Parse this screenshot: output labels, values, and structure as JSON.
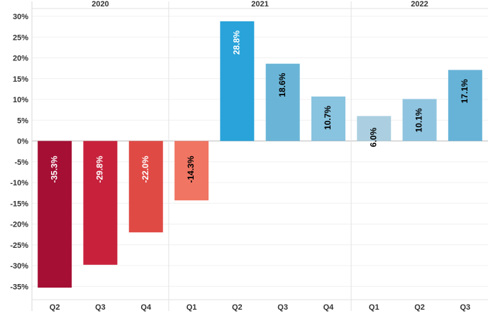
{
  "chart_data": {
    "type": "bar",
    "title": "",
    "xlabel": "",
    "ylabel": "",
    "ylim": [
      -36,
      31
    ],
    "yticks": [
      30,
      25,
      20,
      15,
      10,
      5,
      0,
      -5,
      -10,
      -15,
      -20,
      -25,
      -30,
      -35
    ],
    "ytick_labels": [
      "30%",
      "25%",
      "20%",
      "15%",
      "10%",
      "5%",
      "0%",
      "-5%",
      "-10%",
      "-15%",
      "-20%",
      "-25%",
      "-30%",
      "-35%"
    ],
    "years": [
      {
        "label": "2020",
        "quarters": 3
      },
      {
        "label": "2021",
        "quarters": 4
      },
      {
        "label": "2022",
        "quarters": 3
      }
    ],
    "categories": [
      "Q2",
      "Q3",
      "Q4",
      "Q1",
      "Q2",
      "Q3",
      "Q4",
      "Q1",
      "Q2",
      "Q3"
    ],
    "values": [
      -35.3,
      -29.8,
      -22.0,
      -14.3,
      28.8,
      18.6,
      10.7,
      6.0,
      10.1,
      17.1
    ],
    "value_labels": [
      "-35.3%",
      "-29.8%",
      "-22.0%",
      "-14.3%",
      "28.8%",
      "18.6%",
      "10.7%",
      "6.0%",
      "10.1%",
      "17.1%"
    ],
    "colors": [
      "#a50f34",
      "#c8213c",
      "#e04a45",
      "#f07563",
      "#29a3da",
      "#6ab5d7",
      "#88c3df",
      "#abcfe0",
      "#8fc4e0",
      "#67b3d7"
    ],
    "label_colors": [
      "#ffffff",
      "#ffffff",
      "#ffffff",
      "#000000",
      "#ffffff",
      "#000000",
      "#000000",
      "#000000",
      "#000000",
      "#000000"
    ],
    "grid": true,
    "legend": "none"
  }
}
